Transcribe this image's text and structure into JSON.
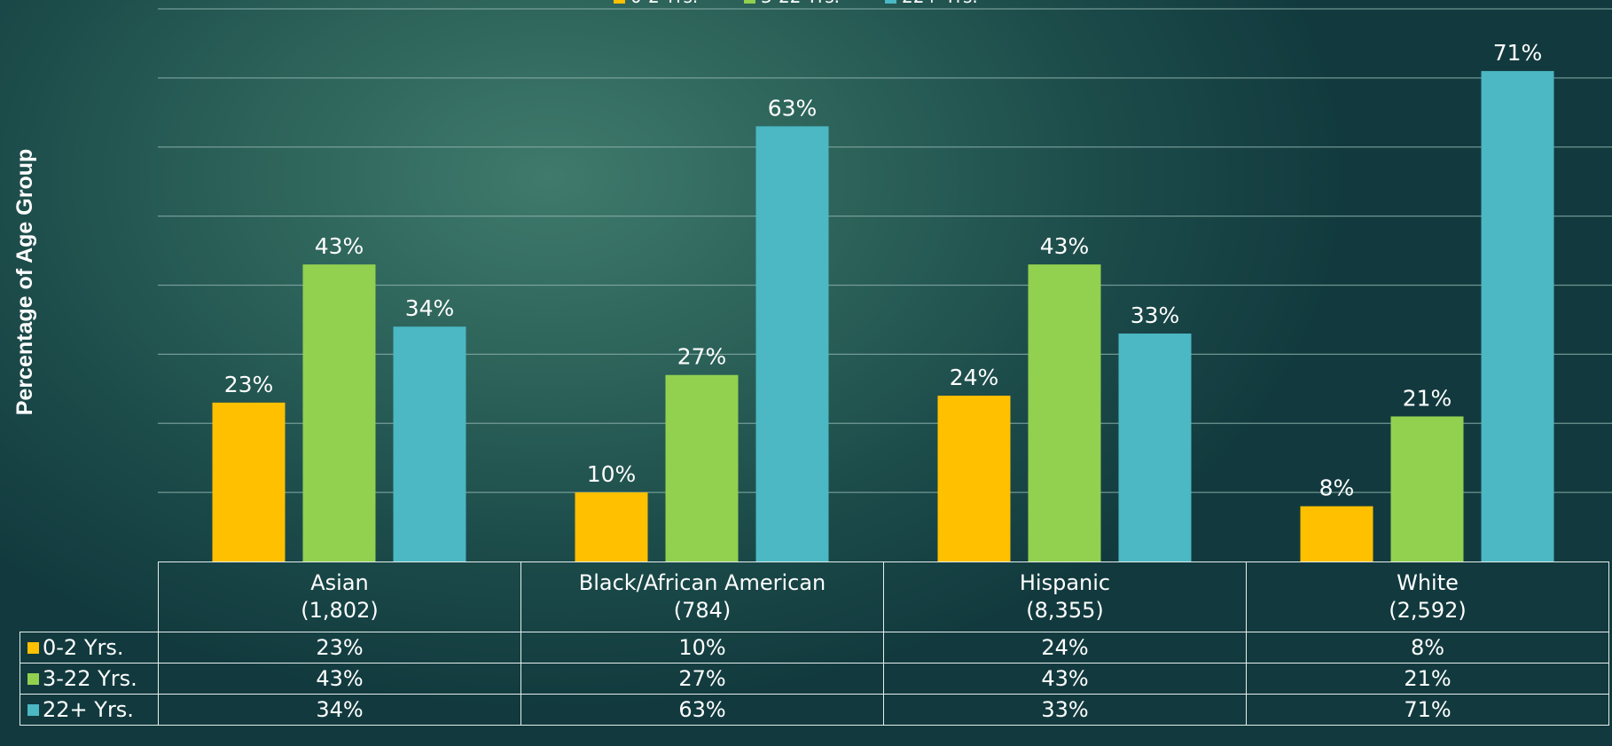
{
  "chart_data": {
    "type": "bar",
    "title": "",
    "xlabel": "",
    "ylabel": "Percentage of Age Group",
    "ylim": [
      0,
      80
    ],
    "grid": true,
    "legend_position": "top",
    "categories": [
      "Asian (1,802)",
      "Black/African American (784)",
      "Hispanic (8,355)",
      "White (2,592)"
    ],
    "category_lines": [
      [
        "Asian",
        "(1,802)"
      ],
      [
        "Black/African American",
        "(784)"
      ],
      [
        "Hispanic",
        "(8,355)"
      ],
      [
        "White",
        "(2,592)"
      ]
    ],
    "series": [
      {
        "name": "0-2 Yrs.",
        "color": "#ffc000",
        "values": [
          23,
          10,
          24,
          8
        ],
        "labels": [
          "23%",
          "10%",
          "24%",
          "8%"
        ]
      },
      {
        "name": "3-22 Yrs.",
        "color": "#92d050",
        "values": [
          43,
          27,
          43,
          21
        ],
        "labels": [
          "43%",
          "27%",
          "43%",
          "21%"
        ]
      },
      {
        "name": "22+ Yrs.",
        "color": "#4bb8c4",
        "values": [
          34,
          63,
          33,
          71
        ],
        "labels": [
          "34%",
          "63%",
          "33%",
          "71%"
        ]
      }
    ]
  }
}
